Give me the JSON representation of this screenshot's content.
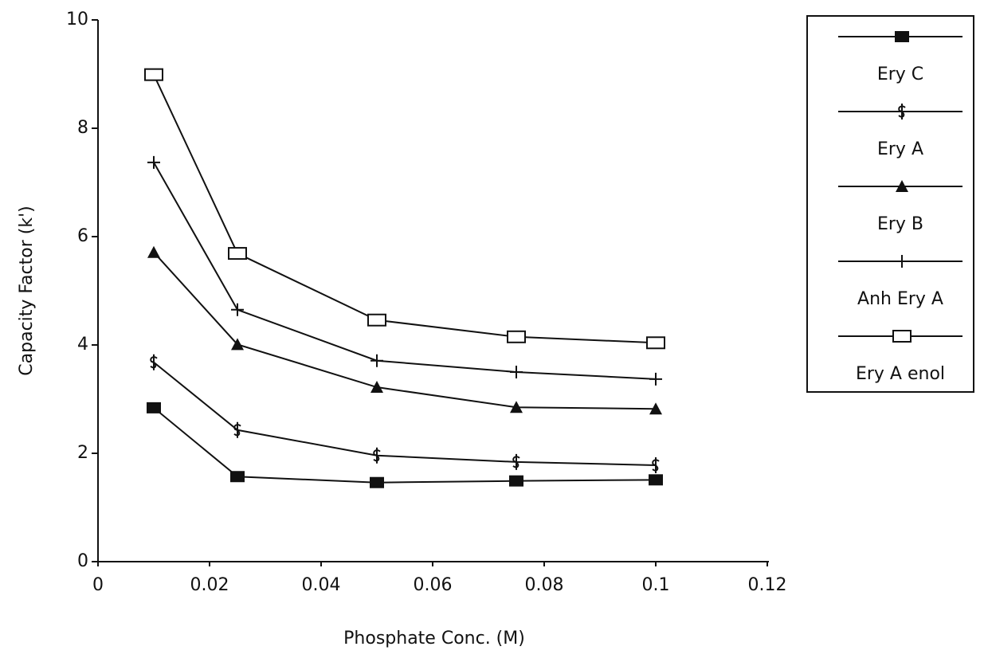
{
  "chart_data": {
    "type": "line",
    "x_label": "Phosphate Conc. (M)",
    "y_label": "Capacity Factor (k')",
    "x": [
      0.01,
      0.025,
      0.05,
      0.075,
      0.1
    ],
    "series": [
      {
        "name": "Ery C",
        "color": "#111111",
        "marker": "square-filled",
        "values": [
          2.84,
          1.57,
          1.46,
          1.49,
          1.51
        ]
      },
      {
        "name": "Ery A",
        "color": "#111111",
        "marker": "dollar",
        "values": [
          3.68,
          2.43,
          1.96,
          1.84,
          1.78
        ]
      },
      {
        "name": "Ery B",
        "color": "#111111",
        "marker": "triangle-filled",
        "values": [
          5.71,
          4.01,
          3.22,
          2.85,
          2.82
        ]
      },
      {
        "name": "Anh Ery A",
        "color": "#111111",
        "marker": "plus",
        "values": [
          7.37,
          4.65,
          3.71,
          3.5,
          3.37
        ]
      },
      {
        "name": "Ery A enol",
        "color": "#111111",
        "marker": "square-open",
        "values": [
          8.99,
          5.69,
          4.46,
          4.15,
          4.04
        ]
      }
    ],
    "xlim": [
      0,
      0.12
    ],
    "xticks": [
      0,
      0.02,
      0.04,
      0.06,
      0.08,
      0.1,
      0.12
    ],
    "ylim": [
      0,
      10
    ],
    "yticks": [
      0,
      2,
      4,
      6,
      8,
      10
    ],
    "legend": "right"
  }
}
